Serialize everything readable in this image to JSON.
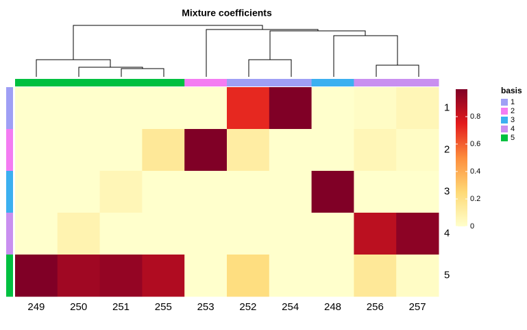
{
  "chart_data": {
    "type": "heatmap",
    "title": "Mixture coefficients",
    "categories": [
      "249",
      "250",
      "251",
      "255",
      "253",
      "252",
      "254",
      "248",
      "256",
      "257"
    ],
    "rows": [
      "1",
      "2",
      "3",
      "4",
      "5"
    ],
    "values": [
      [
        0,
        0,
        0,
        0,
        0,
        0.72,
        1,
        0,
        0.02,
        0.06
      ],
      [
        0,
        0,
        0,
        0.15,
        1,
        0.12,
        0,
        0,
        0.06,
        0.02
      ],
      [
        0,
        0,
        0.06,
        0,
        0,
        0,
        0,
        1,
        0,
        0
      ],
      [
        0,
        0.08,
        0,
        0,
        0,
        0,
        0,
        0,
        0.85,
        0.97
      ],
      [
        1,
        0.92,
        0.95,
        0.88,
        0,
        0.22,
        0,
        0,
        0.15,
        0.02
      ]
    ],
    "clim": [
      0,
      1
    ],
    "cticks": [
      0,
      0.2,
      0.4,
      0.6,
      0.8
    ],
    "colorscale": [
      "#ffffcc",
      "#fed976",
      "#fd8d3c",
      "#e31a1c",
      "#800026"
    ],
    "col_annotation": [
      5,
      5,
      5,
      5,
      2,
      1,
      1,
      3,
      4,
      4
    ],
    "row_annotation": [
      1,
      2,
      3,
      4,
      5
    ],
    "legend_title": "basis",
    "legend_levels": [
      1,
      2,
      3,
      4,
      5
    ],
    "legend_colors": [
      "#9f9ff5",
      "#f47cf2",
      "#3bb0f0",
      "#c98ff0",
      "#00c040"
    ]
  }
}
